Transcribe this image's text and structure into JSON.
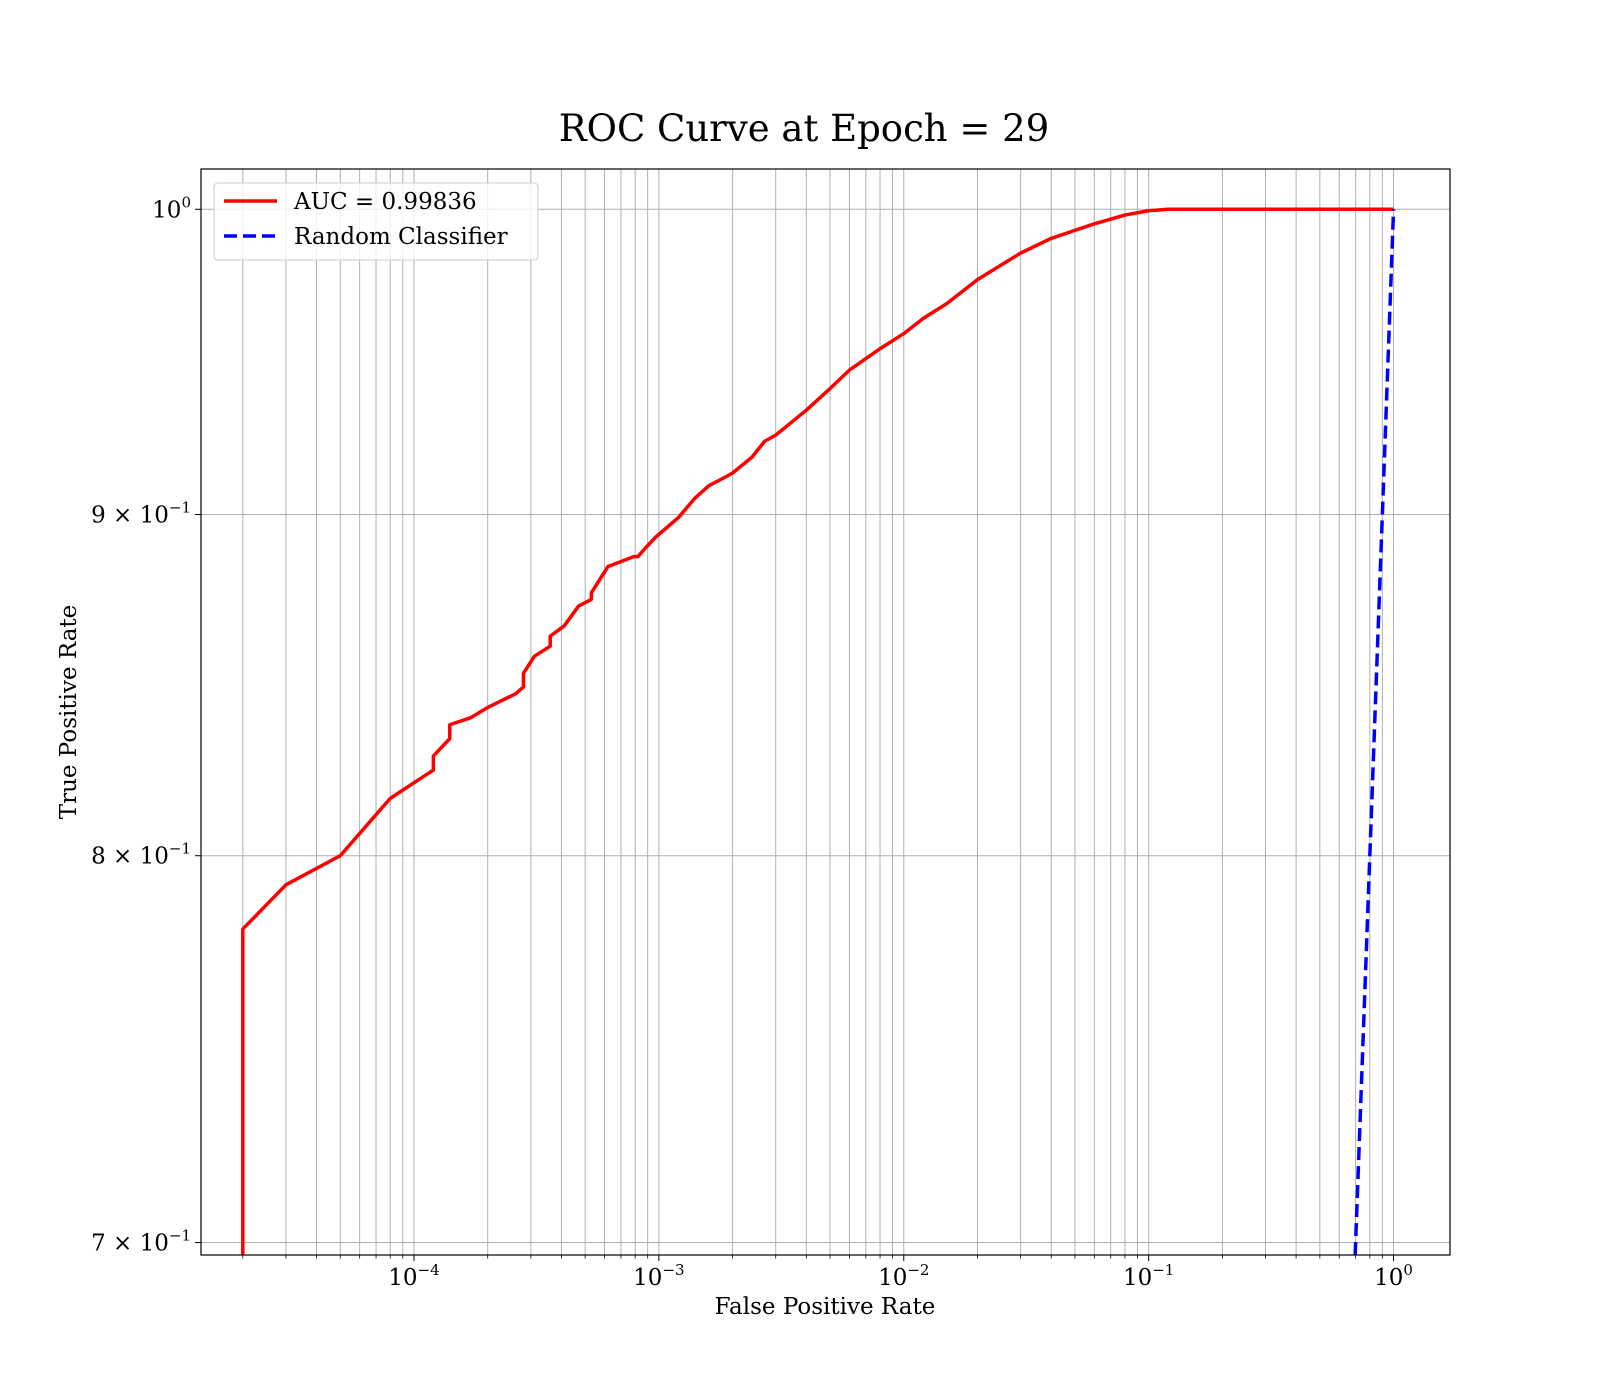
{
  "chart_data": {
    "type": "line",
    "title": "ROC Curve at Epoch = 29",
    "xlabel": "False Positive Rate",
    "ylabel": "True Positive Rate",
    "xscale": "log",
    "yscale": "log",
    "xlim": [
      1.35e-05,
      1.7
    ],
    "ylim": [
      0.697,
      1.014
    ],
    "grid": "on (major and minor)",
    "legend": "upper-left",
    "xticks": [
      {
        "value": 0.0001,
        "base": "10",
        "exp": "−4"
      },
      {
        "value": 0.001,
        "base": "10",
        "exp": "−3"
      },
      {
        "value": 0.01,
        "base": "10",
        "exp": "−2"
      },
      {
        "value": 0.1,
        "base": "10",
        "exp": "−1"
      },
      {
        "value": 1,
        "base": "10",
        "exp": "0"
      }
    ],
    "yticks": [
      {
        "value": 1.0,
        "base": "10",
        "exp": "0"
      },
      {
        "value": 0.9,
        "base": "9 × 10",
        "exp": "−1"
      },
      {
        "value": 0.8,
        "base": "8 × 10",
        "exp": "−1"
      },
      {
        "value": 0.7,
        "base": "7 × 10",
        "exp": "−1"
      }
    ],
    "series": [
      {
        "name": "AUC = 0.99836",
        "color": "#ff0000",
        "style": "solid",
        "x": [
          2e-05,
          2e-05,
          2e-05,
          3e-05,
          5e-05,
          8e-05,
          0.00012,
          0.00012,
          0.00014,
          0.00014,
          0.00017,
          0.0002,
          0.00026,
          0.00028,
          0.00028,
          0.00031,
          0.00036,
          0.00036,
          0.00041,
          0.00047,
          0.00053,
          0.00053,
          0.00062,
          0.00073,
          0.00079,
          0.00082,
          0.00089,
          0.00097,
          0.0012,
          0.0014,
          0.0016,
          0.0019,
          0.002,
          0.0024,
          0.0027,
          0.003,
          0.004,
          0.005,
          0.006,
          0.008,
          0.01,
          0.012,
          0.015,
          0.02,
          0.03,
          0.04,
          0.06,
          0.08,
          0.1,
          0.12,
          1.0
        ],
        "y": [
          0.697,
          0.71,
          0.78,
          0.792,
          0.8,
          0.816,
          0.824,
          0.828,
          0.833,
          0.837,
          0.839,
          0.842,
          0.846,
          0.848,
          0.852,
          0.857,
          0.86,
          0.863,
          0.866,
          0.872,
          0.874,
          0.876,
          0.884,
          0.886,
          0.887,
          0.887,
          0.89,
          0.893,
          0.899,
          0.905,
          0.909,
          0.912,
          0.913,
          0.918,
          0.923,
          0.925,
          0.933,
          0.94,
          0.946,
          0.953,
          0.958,
          0.963,
          0.968,
          0.976,
          0.985,
          0.99,
          0.995,
          0.998,
          0.9995,
          1.0,
          1.0
        ]
      },
      {
        "name": "Random Classifier",
        "color": "#0000ff",
        "style": "dashed",
        "x": [
          0.697,
          1.0
        ],
        "y": [
          0.697,
          1.0
        ]
      }
    ]
  }
}
